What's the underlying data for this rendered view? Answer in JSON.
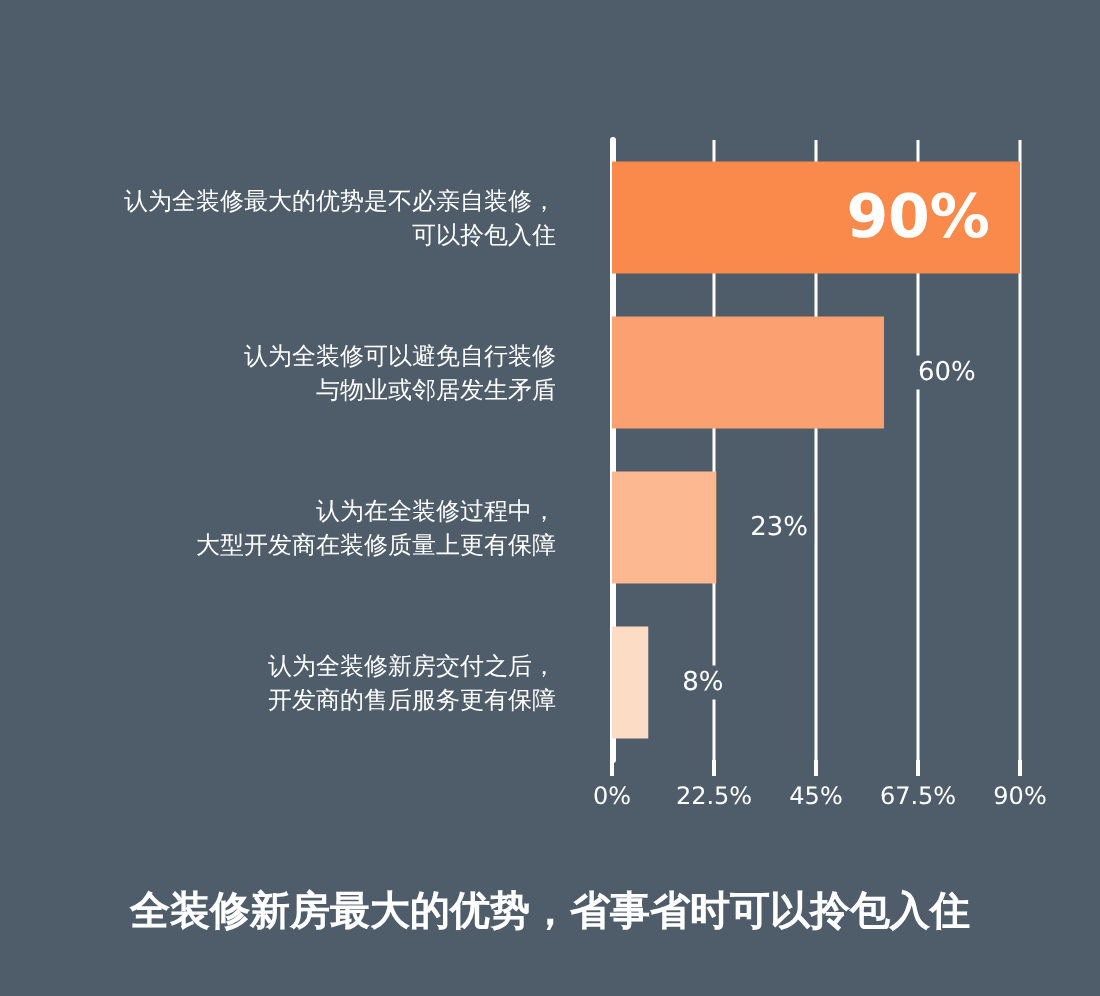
{
  "chart_data": {
    "type": "bar",
    "orientation": "horizontal",
    "title": "全装修新房最大的优势，省事省时可以拎包入住",
    "categories": [
      "认为全装修最大的优势是不必亲自装修，可以拎包入住",
      "认为全装修可以避免自行装修与物业或邻居发生矛盾",
      "认为在全装修过程中，大型开发商在装修质量上更有保障",
      "认为全装修新房交付之后，开发商的售后服务更有保障"
    ],
    "values": [
      90,
      60,
      23,
      8
    ],
    "colors": [
      "#f98a4b",
      "#fba071",
      "#fcb991",
      "#fddcc6"
    ],
    "value_labels": [
      "90%",
      "60%",
      "23%",
      "8%"
    ],
    "xlim": [
      0,
      90
    ],
    "xticks": [
      {
        "value": 0,
        "label": "0%"
      },
      {
        "value": 22.5,
        "label": "22.5%"
      },
      {
        "value": 45,
        "label": "45%"
      },
      {
        "value": 67.5,
        "label": "67.5%"
      },
      {
        "value": 90,
        "label": "90%"
      }
    ],
    "grid": "x"
  }
}
